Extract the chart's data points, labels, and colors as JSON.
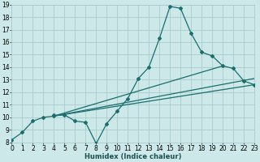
{
  "bg_color": "#cce8e8",
  "grid_color": "#aacccc",
  "line_color": "#1a6e6e",
  "xlabel": "Humidex (Indice chaleur)",
  "xlim": [
    0,
    23
  ],
  "ylim": [
    8,
    19
  ],
  "xticks": [
    0,
    1,
    2,
    3,
    4,
    5,
    6,
    7,
    8,
    9,
    10,
    11,
    12,
    13,
    14,
    15,
    16,
    17,
    18,
    19,
    20,
    21,
    22,
    23
  ],
  "yticks": [
    8,
    9,
    10,
    11,
    12,
    13,
    14,
    15,
    16,
    17,
    18,
    19
  ],
  "line1_x": [
    0,
    1,
    2,
    3,
    4,
    4,
    5,
    6,
    7,
    8,
    9,
    10,
    11,
    12,
    13,
    14,
    15,
    16,
    17,
    18,
    19,
    20,
    21,
    22,
    23
  ],
  "line1_y": [
    8.2,
    8.8,
    9.7,
    10.0,
    10.1,
    10.15,
    10.2,
    9.7,
    9.6,
    7.9,
    9.5,
    10.5,
    11.5,
    13.1,
    14.0,
    16.3,
    18.85,
    18.7,
    16.7,
    15.2,
    14.9,
    14.1,
    13.9,
    12.9,
    12.6
  ],
  "fan_origin_x": 4,
  "fan_origin_y": 10.1,
  "fan_lines": [
    {
      "end_x": 23,
      "end_y": 12.6
    },
    {
      "end_x": 23,
      "end_y": 13.1
    },
    {
      "end_x": 20,
      "end_y": 14.1
    }
  ],
  "marker_size": 2.0,
  "line_width": 0.9,
  "tick_fontsize": 5.5,
  "xlabel_fontsize": 6.0
}
